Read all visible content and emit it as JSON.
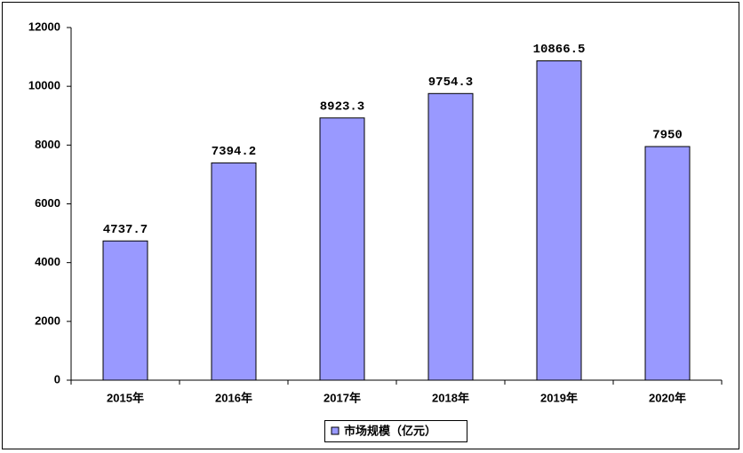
{
  "chart_data": {
    "type": "bar",
    "categories": [
      "2015年",
      "2016年",
      "2017年",
      "2018年",
      "2019年",
      "2020年"
    ],
    "series": [
      {
        "name": "市场规模（亿元）",
        "color": "#9999ff",
        "values": [
          4737.7,
          7394.2,
          8923.3,
          9754.3,
          10866.5,
          7950
        ]
      }
    ],
    "ylim": [
      0,
      12000
    ],
    "yticks": [
      0,
      2000,
      4000,
      6000,
      8000,
      10000,
      12000
    ],
    "grid": false,
    "legend": "bottom",
    "data_labels": true
  }
}
